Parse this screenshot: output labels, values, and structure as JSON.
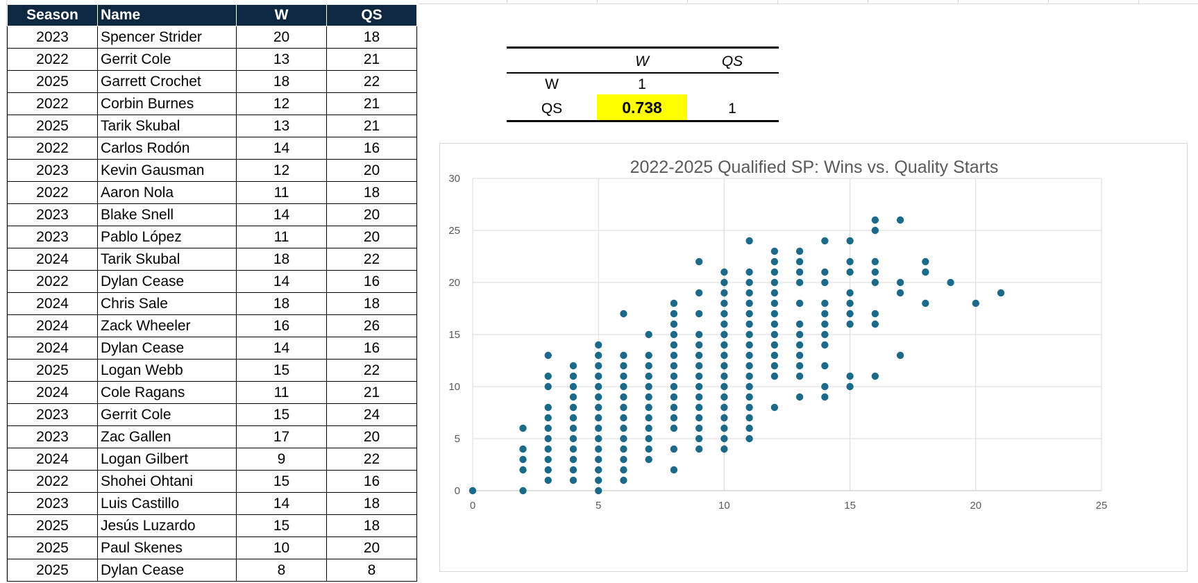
{
  "table": {
    "headers": [
      "Season",
      "Name",
      "W",
      "QS"
    ],
    "rows": [
      [
        "2023",
        "Spencer Strider",
        "20",
        "18"
      ],
      [
        "2022",
        "Gerrit Cole",
        "13",
        "21"
      ],
      [
        "2025",
        "Garrett Crochet",
        "18",
        "22"
      ],
      [
        "2022",
        "Corbin Burnes",
        "12",
        "21"
      ],
      [
        "2025",
        "Tarik Skubal",
        "13",
        "21"
      ],
      [
        "2022",
        "Carlos Rodón",
        "14",
        "16"
      ],
      [
        "2023",
        "Kevin Gausman",
        "12",
        "20"
      ],
      [
        "2022",
        "Aaron Nola",
        "11",
        "18"
      ],
      [
        "2023",
        "Blake Snell",
        "14",
        "20"
      ],
      [
        "2023",
        "Pablo López",
        "11",
        "20"
      ],
      [
        "2024",
        "Tarik Skubal",
        "18",
        "22"
      ],
      [
        "2022",
        "Dylan Cease",
        "14",
        "16"
      ],
      [
        "2024",
        "Chris Sale",
        "18",
        "18"
      ],
      [
        "2024",
        "Zack Wheeler",
        "16",
        "26"
      ],
      [
        "2024",
        "Dylan Cease",
        "14",
        "16"
      ],
      [
        "2025",
        "Logan Webb",
        "15",
        "22"
      ],
      [
        "2024",
        "Cole Ragans",
        "11",
        "21"
      ],
      [
        "2023",
        "Gerrit Cole",
        "15",
        "24"
      ],
      [
        "2023",
        "Zac Gallen",
        "17",
        "20"
      ],
      [
        "2024",
        "Logan Gilbert",
        "9",
        "22"
      ],
      [
        "2022",
        "Shohei Ohtani",
        "15",
        "16"
      ],
      [
        "2023",
        "Luis Castillo",
        "14",
        "18"
      ],
      [
        "2025",
        "Jesús Luzardo",
        "15",
        "18"
      ],
      [
        "2025",
        "Paul Skenes",
        "10",
        "20"
      ],
      [
        "2025",
        "Dylan Cease",
        "8",
        "8"
      ]
    ]
  },
  "correlation": {
    "col_headers": [
      "W",
      "QS"
    ],
    "row_labels": [
      "W",
      "QS"
    ],
    "w_w": "1",
    "qs_w": "0.738",
    "qs_qs": "1",
    "highlight_color": "#ffff00"
  },
  "chart_data": {
    "type": "scatter",
    "title": "2022-2025 Qualified SP: Wins vs. Quality Starts",
    "xlabel": "",
    "ylabel": "",
    "xlim": [
      0,
      25
    ],
    "ylim": [
      0,
      30
    ],
    "x_ticks": [
      0,
      5,
      10,
      15,
      20,
      25
    ],
    "y_ticks": [
      0,
      5,
      10,
      15,
      20,
      25,
      30
    ],
    "grid": true,
    "marker_color": "#1b6a89",
    "points": [
      [
        0,
        0
      ],
      [
        2,
        0
      ],
      [
        2,
        2
      ],
      [
        2,
        3
      ],
      [
        2,
        4
      ],
      [
        2,
        6
      ],
      [
        3,
        1
      ],
      [
        3,
        2
      ],
      [
        3,
        3
      ],
      [
        3,
        4
      ],
      [
        3,
        5
      ],
      [
        3,
        6
      ],
      [
        3,
        7
      ],
      [
        3,
        8
      ],
      [
        3,
        10
      ],
      [
        3,
        11
      ],
      [
        3,
        13
      ],
      [
        4,
        1
      ],
      [
        4,
        2
      ],
      [
        4,
        3
      ],
      [
        4,
        4
      ],
      [
        4,
        5
      ],
      [
        4,
        6
      ],
      [
        4,
        7
      ],
      [
        4,
        8
      ],
      [
        4,
        9
      ],
      [
        4,
        10
      ],
      [
        4,
        11
      ],
      [
        4,
        12
      ],
      [
        5,
        0
      ],
      [
        5,
        1
      ],
      [
        5,
        2
      ],
      [
        5,
        3
      ],
      [
        5,
        4
      ],
      [
        5,
        5
      ],
      [
        5,
        6
      ],
      [
        5,
        7
      ],
      [
        5,
        8
      ],
      [
        5,
        9
      ],
      [
        5,
        10
      ],
      [
        5,
        11
      ],
      [
        5,
        12
      ],
      [
        5,
        13
      ],
      [
        5,
        14
      ],
      [
        6,
        1
      ],
      [
        6,
        2
      ],
      [
        6,
        3
      ],
      [
        6,
        4
      ],
      [
        6,
        5
      ],
      [
        6,
        6
      ],
      [
        6,
        7
      ],
      [
        6,
        8
      ],
      [
        6,
        9
      ],
      [
        6,
        10
      ],
      [
        6,
        11
      ],
      [
        6,
        12
      ],
      [
        6,
        13
      ],
      [
        6,
        17
      ],
      [
        7,
        3
      ],
      [
        7,
        4
      ],
      [
        7,
        5
      ],
      [
        7,
        6
      ],
      [
        7,
        7
      ],
      [
        7,
        8
      ],
      [
        7,
        9
      ],
      [
        7,
        10
      ],
      [
        7,
        11
      ],
      [
        7,
        12
      ],
      [
        7,
        13
      ],
      [
        7,
        15
      ],
      [
        8,
        2
      ],
      [
        8,
        4
      ],
      [
        8,
        6
      ],
      [
        8,
        7
      ],
      [
        8,
        8
      ],
      [
        8,
        9
      ],
      [
        8,
        10
      ],
      [
        8,
        11
      ],
      [
        8,
        12
      ],
      [
        8,
        13
      ],
      [
        8,
        14
      ],
      [
        8,
        15
      ],
      [
        8,
        16
      ],
      [
        8,
        17
      ],
      [
        8,
        18
      ],
      [
        9,
        4
      ],
      [
        9,
        5
      ],
      [
        9,
        6
      ],
      [
        9,
        7
      ],
      [
        9,
        8
      ],
      [
        9,
        9
      ],
      [
        9,
        10
      ],
      [
        9,
        11
      ],
      [
        9,
        12
      ],
      [
        9,
        13
      ],
      [
        9,
        14
      ],
      [
        9,
        15
      ],
      [
        9,
        17
      ],
      [
        9,
        19
      ],
      [
        9,
        22
      ],
      [
        10,
        4
      ],
      [
        10,
        5
      ],
      [
        10,
        6
      ],
      [
        10,
        7
      ],
      [
        10,
        8
      ],
      [
        10,
        9
      ],
      [
        10,
        10
      ],
      [
        10,
        11
      ],
      [
        10,
        12
      ],
      [
        10,
        13
      ],
      [
        10,
        14
      ],
      [
        10,
        15
      ],
      [
        10,
        16
      ],
      [
        10,
        17
      ],
      [
        10,
        18
      ],
      [
        10,
        19
      ],
      [
        10,
        20
      ],
      [
        10,
        21
      ],
      [
        11,
        5
      ],
      [
        11,
        6
      ],
      [
        11,
        7
      ],
      [
        11,
        8
      ],
      [
        11,
        9
      ],
      [
        11,
        10
      ],
      [
        11,
        11
      ],
      [
        11,
        12
      ],
      [
        11,
        13
      ],
      [
        11,
        14
      ],
      [
        11,
        15
      ],
      [
        11,
        16
      ],
      [
        11,
        17
      ],
      [
        11,
        18
      ],
      [
        11,
        19
      ],
      [
        11,
        20
      ],
      [
        11,
        21
      ],
      [
        11,
        24
      ],
      [
        12,
        8
      ],
      [
        12,
        11
      ],
      [
        12,
        12
      ],
      [
        12,
        13
      ],
      [
        12,
        14
      ],
      [
        12,
        15
      ],
      [
        12,
        16
      ],
      [
        12,
        17
      ],
      [
        12,
        18
      ],
      [
        12,
        19
      ],
      [
        12,
        20
      ],
      [
        12,
        21
      ],
      [
        12,
        22
      ],
      [
        12,
        23
      ],
      [
        13,
        9
      ],
      [
        13,
        11
      ],
      [
        13,
        12
      ],
      [
        13,
        13
      ],
      [
        13,
        14
      ],
      [
        13,
        15
      ],
      [
        13,
        16
      ],
      [
        13,
        18
      ],
      [
        13,
        20
      ],
      [
        13,
        21
      ],
      [
        13,
        22
      ],
      [
        13,
        23
      ],
      [
        14,
        9
      ],
      [
        14,
        10
      ],
      [
        14,
        12
      ],
      [
        14,
        14
      ],
      [
        14,
        15
      ],
      [
        14,
        16
      ],
      [
        14,
        17
      ],
      [
        14,
        18
      ],
      [
        14,
        20
      ],
      [
        14,
        21
      ],
      [
        14,
        24
      ],
      [
        15,
        10
      ],
      [
        15,
        11
      ],
      [
        15,
        16
      ],
      [
        15,
        17
      ],
      [
        15,
        18
      ],
      [
        15,
        19
      ],
      [
        15,
        21
      ],
      [
        15,
        22
      ],
      [
        15,
        24
      ],
      [
        16,
        11
      ],
      [
        16,
        16
      ],
      [
        16,
        17
      ],
      [
        16,
        20
      ],
      [
        16,
        21
      ],
      [
        16,
        22
      ],
      [
        16,
        25
      ],
      [
        16,
        26
      ],
      [
        17,
        13
      ],
      [
        17,
        19
      ],
      [
        17,
        20
      ],
      [
        17,
        26
      ],
      [
        18,
        18
      ],
      [
        18,
        21
      ],
      [
        18,
        22
      ],
      [
        19,
        20
      ],
      [
        20,
        18
      ],
      [
        21,
        19
      ]
    ]
  }
}
